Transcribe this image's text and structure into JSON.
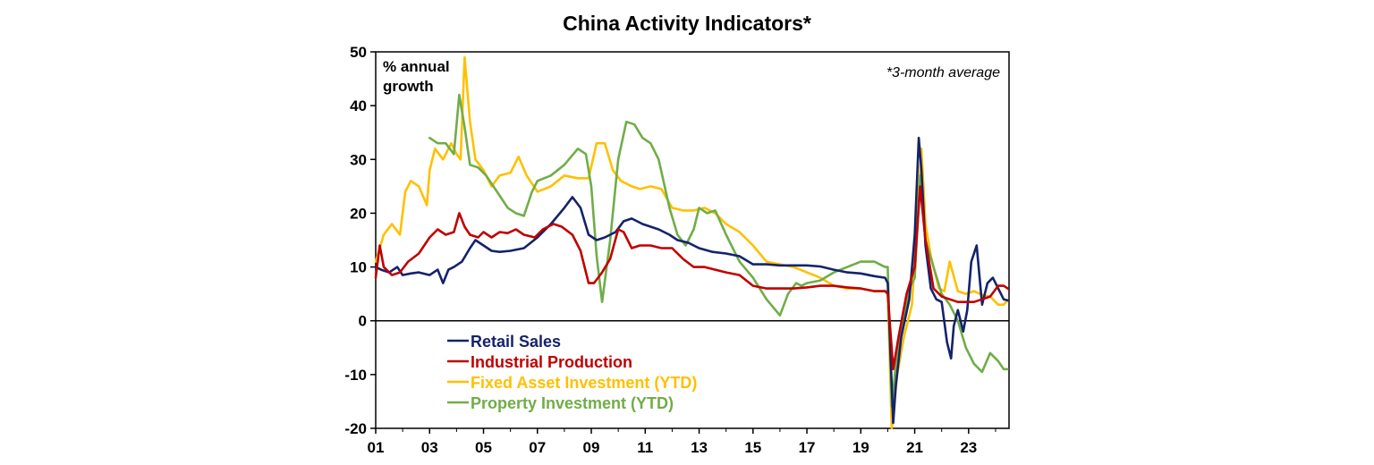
{
  "chart_data": {
    "type": "line",
    "title": "China Activity Indicators*",
    "ylabel_line1": "% annual",
    "ylabel_line2": "growth",
    "annotation": "*3-month average",
    "ylim": [
      -20,
      50
    ],
    "xlim": [
      2001,
      2024.5
    ],
    "y_ticks": [
      "50",
      "40",
      "30",
      "20",
      "10",
      "0",
      "-10",
      "-20"
    ],
    "y_tick_values": [
      50,
      40,
      30,
      20,
      10,
      0,
      -10,
      -20
    ],
    "x_ticks": [
      "01",
      "03",
      "05",
      "07",
      "09",
      "11",
      "13",
      "15",
      "17",
      "19",
      "21",
      "23"
    ],
    "x_tick_values": [
      2001,
      2003,
      2005,
      2007,
      2009,
      2011,
      2013,
      2015,
      2017,
      2019,
      2021,
      2023
    ],
    "legend_position": "bottom-left",
    "series": [
      {
        "name": "Retail Sales",
        "color": "#14236b",
        "x": [
          2001.0,
          2001.2,
          2001.5,
          2001.8,
          2002.0,
          2002.3,
          2002.6,
          2003.0,
          2003.3,
          2003.5,
          2003.7,
          2003.9,
          2004.2,
          2004.5,
          2004.7,
          2005.0,
          2005.3,
          2005.6,
          2006.0,
          2006.5,
          2007.0,
          2007.5,
          2008.0,
          2008.3,
          2008.6,
          2008.9,
          2009.2,
          2009.5,
          2009.9,
          2010.2,
          2010.5,
          2010.9,
          2011.2,
          2011.5,
          2011.9,
          2012.2,
          2012.6,
          2013.0,
          2013.5,
          2014.0,
          2014.5,
          2015.0,
          2015.5,
          2016.0,
          2016.5,
          2017.0,
          2017.5,
          2018.0,
          2018.5,
          2019.0,
          2019.5,
          2019.9,
          2020.0,
          2020.2,
          2020.3,
          2020.5,
          2020.8,
          2021.0,
          2021.15,
          2021.25,
          2021.4,
          2021.6,
          2021.8,
          2022.0,
          2022.2,
          2022.35,
          2022.45,
          2022.6,
          2022.8,
          2022.95,
          2023.1,
          2023.3,
          2023.5,
          2023.7,
          2023.9,
          2024.1,
          2024.3,
          2024.45
        ],
        "values": [
          10,
          9.5,
          9,
          10,
          8.5,
          8.8,
          9,
          8.5,
          9.5,
          7,
          9.5,
          10,
          11,
          13.5,
          15,
          14,
          13,
          12.8,
          13,
          13.5,
          15.5,
          18,
          21,
          23,
          21,
          16,
          15,
          15.5,
          16.5,
          18.5,
          19,
          18,
          17.5,
          17,
          16,
          15,
          14.5,
          13.5,
          12.8,
          12.5,
          12,
          10.5,
          10.5,
          10.3,
          10.3,
          10.3,
          10.1,
          9.5,
          9,
          8.8,
          8.3,
          8,
          7,
          -19,
          -12,
          -3,
          4,
          16,
          34,
          28,
          14,
          6,
          4,
          3.5,
          -4,
          -7,
          -1,
          2,
          -2,
          2,
          11,
          14,
          3,
          7,
          8,
          6,
          4,
          3.8
        ]
      },
      {
        "name": "Industrial Production",
        "color": "#c00000",
        "x": [
          2001.0,
          2001.15,
          2001.3,
          2001.6,
          2001.9,
          2002.2,
          2002.6,
          2003.0,
          2003.3,
          2003.6,
          2003.9,
          2004.1,
          2004.3,
          2004.5,
          2004.8,
          2005.0,
          2005.3,
          2005.6,
          2005.9,
          2006.2,
          2006.5,
          2006.9,
          2007.2,
          2007.6,
          2007.9,
          2008.3,
          2008.6,
          2008.9,
          2009.1,
          2009.4,
          2009.7,
          2010.0,
          2010.2,
          2010.5,
          2010.8,
          2011.2,
          2011.6,
          2012.0,
          2012.4,
          2012.8,
          2013.2,
          2013.6,
          2014.0,
          2014.5,
          2015.0,
          2015.5,
          2016.0,
          2016.5,
          2017.0,
          2017.5,
          2018.0,
          2018.5,
          2019.0,
          2019.5,
          2019.9,
          2020.0,
          2020.2,
          2020.4,
          2020.7,
          2021.0,
          2021.2,
          2021.4,
          2021.7,
          2022.0,
          2022.3,
          2022.6,
          2022.9,
          2023.2,
          2023.5,
          2023.8,
          2024.1,
          2024.3,
          2024.45
        ],
        "values": [
          8,
          14,
          10,
          8.5,
          9,
          11,
          12.5,
          15.5,
          17,
          16,
          16.5,
          20,
          17.5,
          16,
          15.5,
          16.5,
          15.5,
          16.5,
          16.3,
          17,
          16,
          15.5,
          17,
          18,
          17.5,
          16,
          13,
          7,
          7,
          9,
          11.5,
          17,
          16.5,
          13.5,
          14,
          14,
          13.5,
          13.5,
          11.5,
          10,
          10,
          9.5,
          9,
          8.5,
          6.5,
          6,
          6,
          6,
          6.2,
          6.5,
          6.5,
          6.2,
          6,
          5.5,
          5.5,
          5,
          -9,
          -3,
          5,
          10,
          25,
          15,
          6,
          4.5,
          4,
          3.5,
          3.5,
          3.5,
          4,
          4.5,
          6.5,
          6.5,
          6
        ]
      },
      {
        "name": "Fixed Asset Investment (YTD)",
        "color": "#ffc000",
        "x": [
          2001.0,
          2001.3,
          2001.6,
          2001.9,
          2002.1,
          2002.3,
          2002.6,
          2002.9,
          2003.0,
          2003.2,
          2003.5,
          2003.8,
          2004.0,
          2004.15,
          2004.3,
          2004.5,
          2004.7,
          2005.0,
          2005.3,
          2005.6,
          2006.0,
          2006.3,
          2006.6,
          2007.0,
          2007.5,
          2008.0,
          2008.5,
          2008.9,
          2009.2,
          2009.5,
          2009.8,
          2010.1,
          2010.5,
          2010.8,
          2011.2,
          2011.6,
          2012.0,
          2012.4,
          2012.8,
          2013.2,
          2013.6,
          2014.0,
          2014.5,
          2015.0,
          2015.5,
          2016.0,
          2016.5,
          2017.0,
          2017.5,
          2018.0,
          2018.5,
          2019.0,
          2019.5,
          2019.9,
          2020.0,
          2020.15,
          2020.35,
          2020.6,
          2020.9,
          2021.1,
          2021.25,
          2021.4,
          2021.6,
          2021.9,
          2022.1,
          2022.3,
          2022.6,
          2022.9,
          2023.2,
          2023.5,
          2023.8,
          2024.1,
          2024.3,
          2024.45
        ],
        "values": [
          11,
          16,
          18,
          16,
          24,
          26,
          25,
          21.5,
          28,
          32,
          30,
          33,
          31,
          30,
          49,
          37,
          30,
          28,
          25,
          27,
          27.5,
          30.5,
          27,
          24,
          25,
          27,
          26.5,
          26.5,
          33,
          33,
          28,
          26,
          25,
          24.5,
          25,
          24.5,
          21,
          20.5,
          20.5,
          21,
          20,
          18,
          16.5,
          14,
          11,
          10.5,
          10,
          9,
          8,
          6.5,
          6,
          6,
          5.5,
          5.5,
          5.5,
          -20,
          -10,
          -3,
          3,
          20,
          32,
          18,
          12,
          6,
          5.5,
          11,
          5.5,
          5,
          5.5,
          4.8,
          4.5,
          3,
          3,
          3.8
        ]
      },
      {
        "name": "Property Investment (YTD)",
        "color": "#70ad47",
        "x": [
          2003.0,
          2003.3,
          2003.6,
          2003.9,
          2004.1,
          2004.3,
          2004.5,
          2004.8,
          2005.1,
          2005.5,
          2005.9,
          2006.2,
          2006.5,
          2006.8,
          2007.0,
          2007.5,
          2008.0,
          2008.5,
          2008.8,
          2009.0,
          2009.2,
          2009.4,
          2009.7,
          2010.0,
          2010.3,
          2010.6,
          2010.9,
          2011.2,
          2011.5,
          2011.9,
          2012.2,
          2012.5,
          2012.8,
          2013.0,
          2013.3,
          2013.6,
          2014.0,
          2014.5,
          2015.0,
          2015.5,
          2016.0,
          2016.3,
          2016.6,
          2016.8,
          2017.0,
          2017.5,
          2018.0,
          2018.5,
          2019.0,
          2019.5,
          2019.9,
          2020.0,
          2020.15,
          2020.3,
          2020.5,
          2020.8,
          2021.0,
          2021.2,
          2021.4,
          2021.7,
          2022.0,
          2022.3,
          2022.6,
          2022.9,
          2023.2,
          2023.5,
          2023.8,
          2024.1,
          2024.3,
          2024.45
        ],
        "values": [
          34,
          33,
          33,
          31,
          42,
          36,
          29,
          28.5,
          27,
          24,
          21,
          20,
          19.5,
          24,
          26,
          27,
          29,
          32,
          31,
          25,
          12,
          3.5,
          15,
          30,
          37,
          36.5,
          34,
          33,
          30,
          21,
          16,
          14,
          17,
          21,
          20,
          20.5,
          16,
          11,
          8,
          4,
          1,
          5,
          7,
          6.5,
          7,
          7.5,
          9,
          10,
          11,
          11,
          10,
          10,
          -16,
          -8,
          -2,
          6,
          8,
          27,
          15,
          10,
          5,
          3,
          0,
          -5,
          -8,
          -9.5,
          -6,
          -7.5,
          -9,
          -9
        ]
      }
    ]
  }
}
